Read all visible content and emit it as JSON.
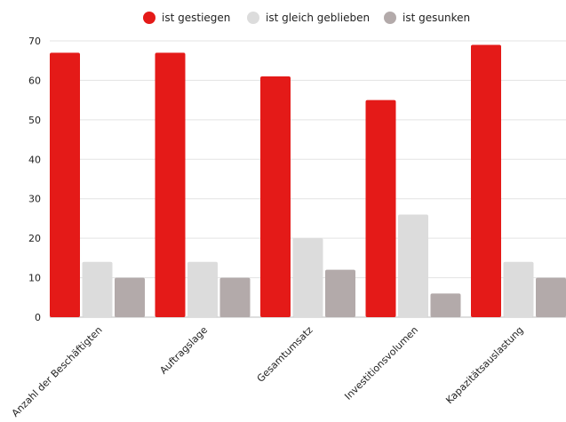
{
  "chart_data": {
    "type": "bar",
    "title": "",
    "xlabel": "",
    "ylabel": "",
    "ylim": [
      0,
      70
    ],
    "yticks": [
      0,
      10,
      20,
      30,
      40,
      50,
      60,
      70
    ],
    "grid": true,
    "legend_position": "top-center",
    "categories": [
      "Anzahl der Beschäftigten",
      "Auftragslage",
      "Gesamtumsatz",
      "Investitionsvolumen",
      "Kapazitätsauslastung"
    ],
    "series": [
      {
        "name": "ist gestiegen",
        "color": "#e41a18",
        "values": [
          67,
          67,
          61,
          55,
          69
        ]
      },
      {
        "name": "ist gleich geblieben",
        "color": "#dcdcdc",
        "values": [
          14,
          14,
          20,
          26,
          14
        ]
      },
      {
        "name": "ist gesunken",
        "color": "#b3aaaa",
        "values": [
          10,
          10,
          12,
          6,
          10
        ]
      }
    ]
  }
}
